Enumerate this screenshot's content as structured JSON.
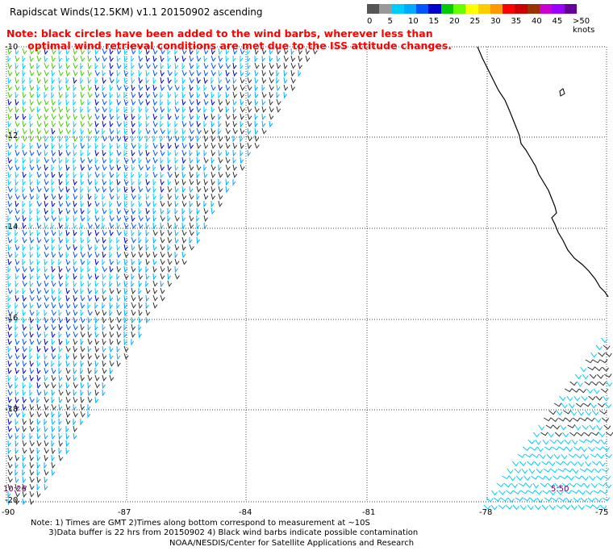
{
  "title": "Rapidscat Winds(12.5KM) v1.1 20150902 ascending",
  "note_line1": "Note: black circles have been added to the wind barbs, wherever less than",
  "note_line2": "      optimal wind retrieval conditions are met due to the ISS attitude changes.",
  "legend": {
    "labels": [
      "0",
      "5",
      "10",
      "15",
      "20",
      "25",
      "30",
      "35",
      "40",
      "45",
      ">50 knots"
    ],
    "colors": [
      "#555555",
      "#999999",
      "#00ccff",
      "#00aaff",
      "#0055ff",
      "#0000cc",
      "#00cc00",
      "#66ff00",
      "#ffff00",
      "#ffcc00",
      "#ff9900",
      "#ff0000",
      "#cc0000",
      "#993300",
      "#cc00cc",
      "#9900ff",
      "#660099"
    ]
  },
  "axes": {
    "lat_labels": [
      "-10",
      "-12",
      "-14",
      "-16",
      "-18",
      "-20"
    ],
    "lon_labels": [
      "-90",
      "-87",
      "-84",
      "-81",
      "-78",
      "-75"
    ]
  },
  "passes": {
    "left_time": "10:26",
    "right_time": "5:50"
  },
  "footer_line1": "Note: 1) Times are GMT 2)Times along bottom correspond to measurement at ~10S",
  "footer_line2": "       3)Data buffer is 22 hrs from 20150902 4) Black wind barbs indicate possible contamination",
  "credit": "NOAA/NESDIS/Center for Satellite Applications and Research"
}
